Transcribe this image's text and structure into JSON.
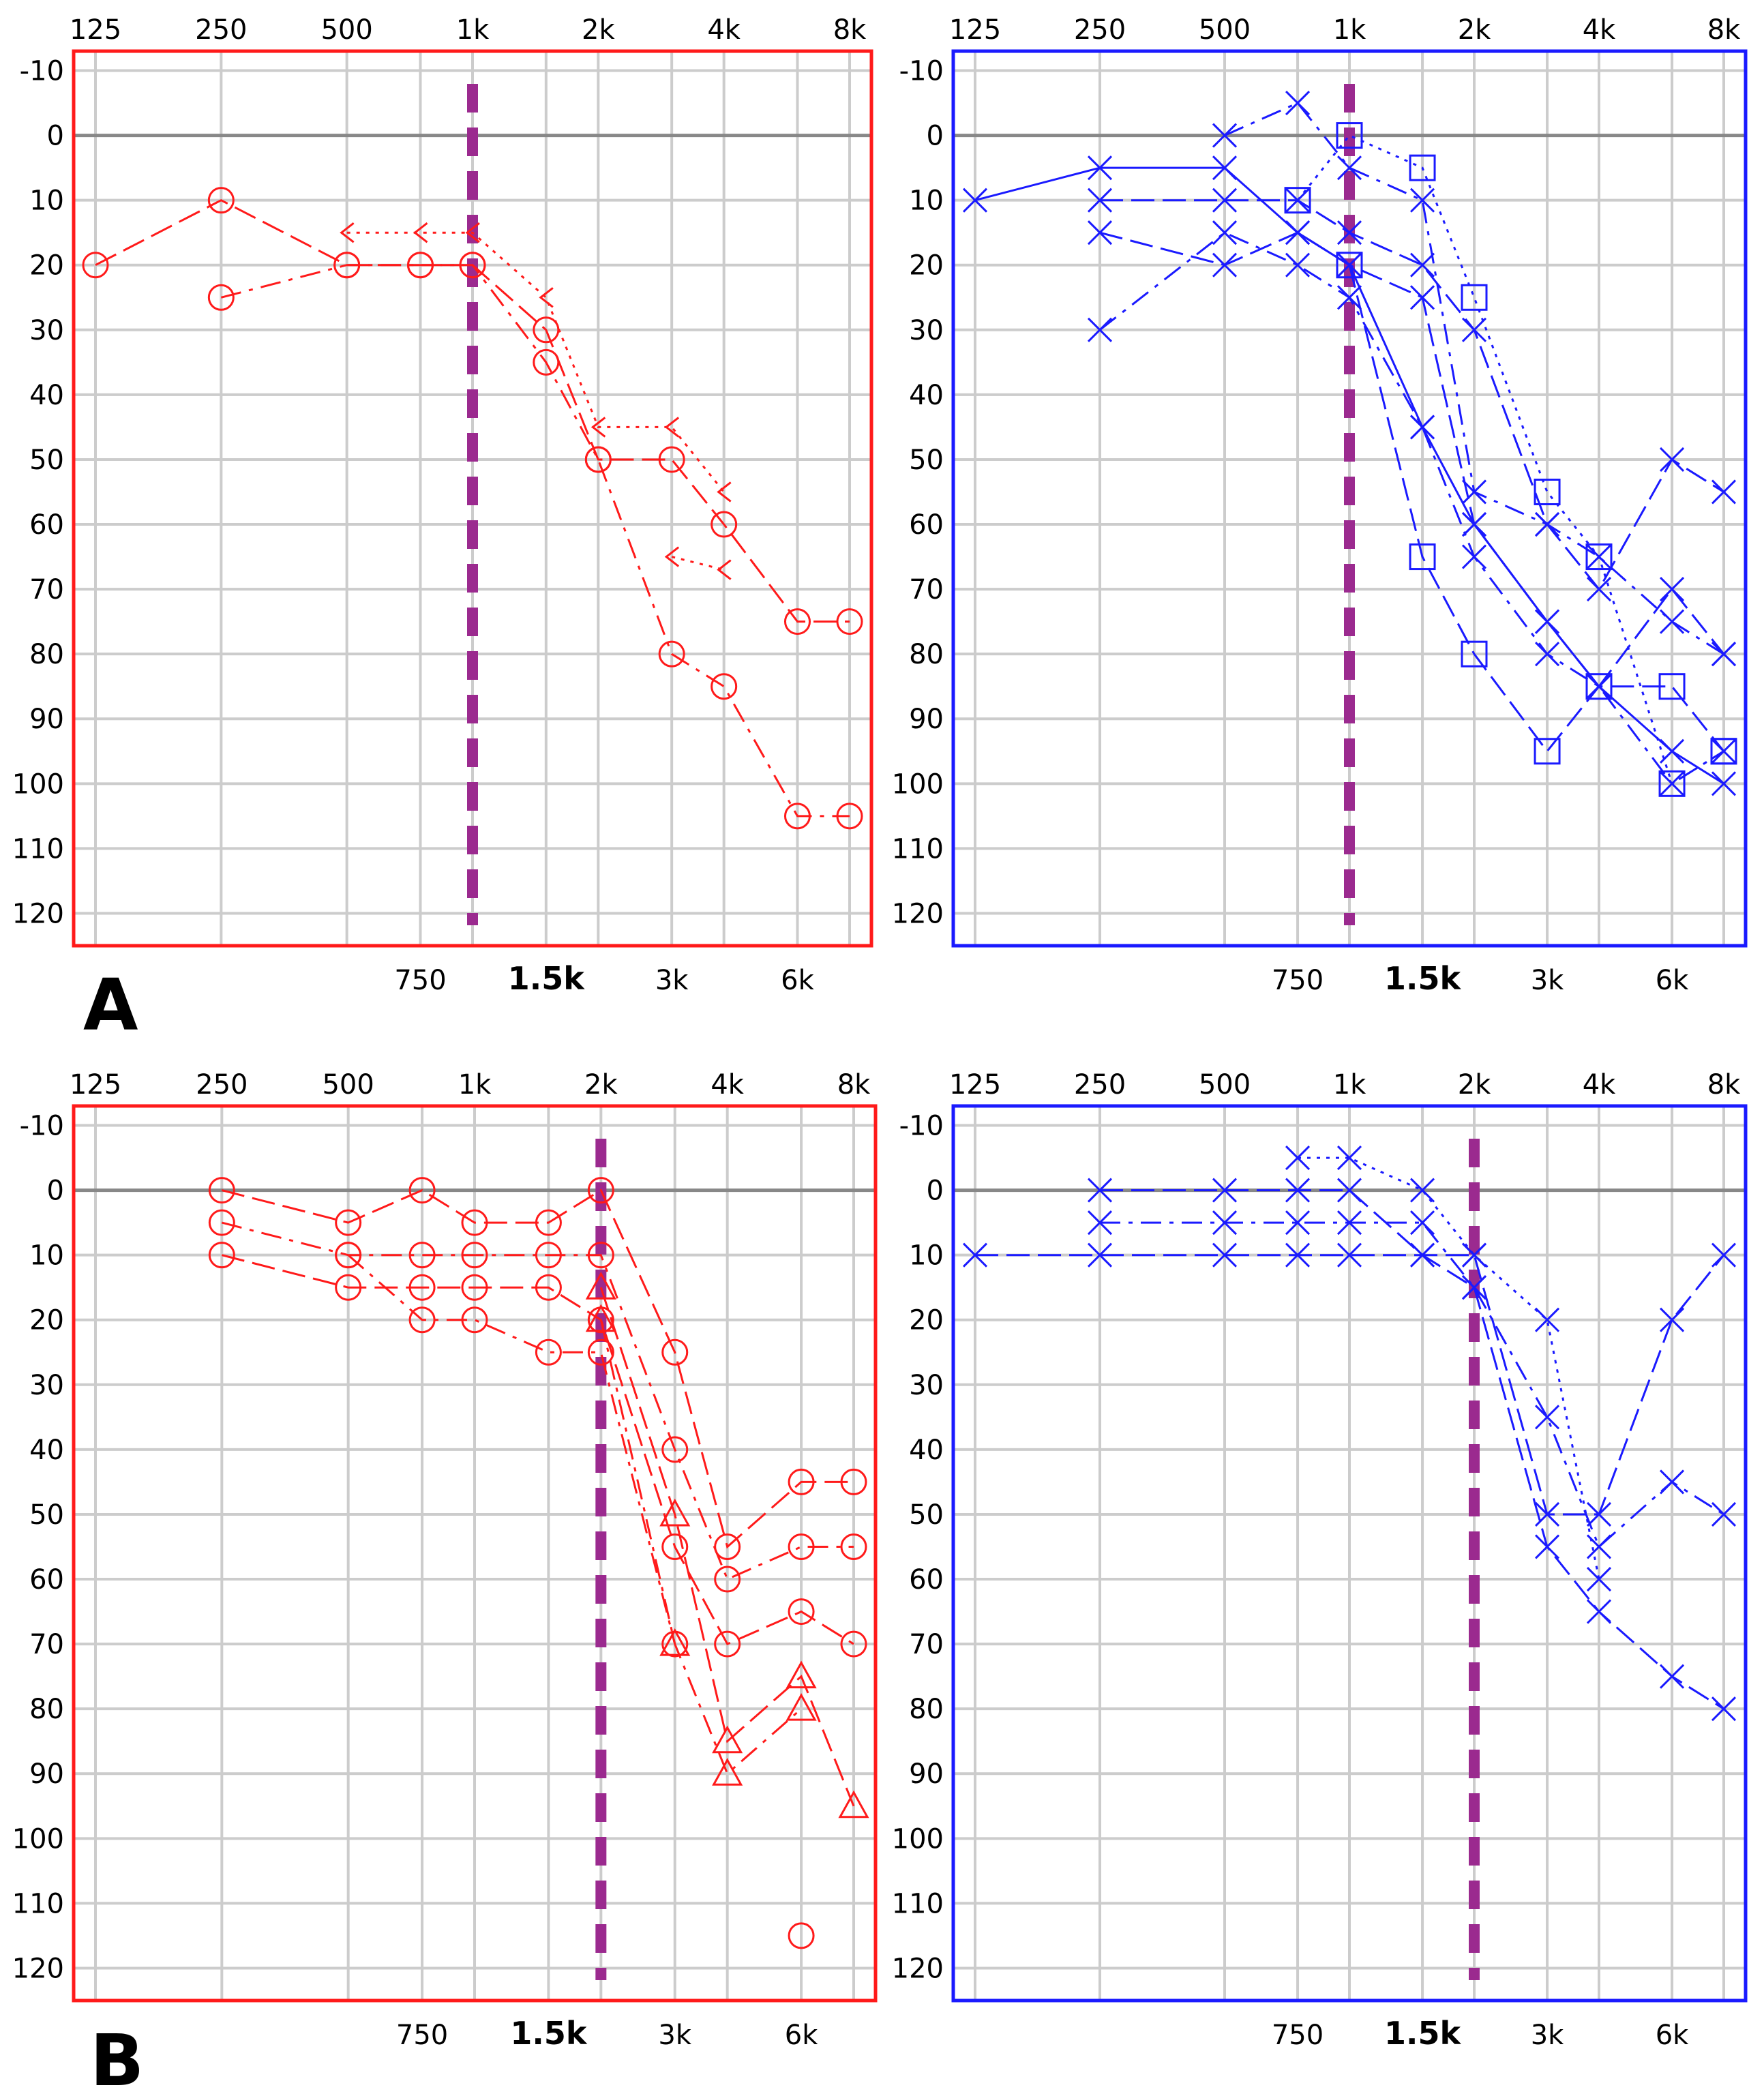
{
  "figure": {
    "panel_labels": [
      "A",
      "B"
    ]
  },
  "axis": {
    "x_top_ticks": [
      "125",
      "250",
      "500",
      "1k",
      "2k",
      "4k",
      "8k"
    ],
    "x_top_values": [
      125,
      250,
      500,
      1000,
      2000,
      4000,
      8000
    ],
    "x_bottom_ticks": [
      {
        "label": "750",
        "value": 750,
        "bold": false
      },
      {
        "label": "1.5k",
        "value": 1500,
        "bold": true
      },
      {
        "label": "3k",
        "value": 3000,
        "bold": false
      },
      {
        "label": "6k",
        "value": 6000,
        "bold": false
      }
    ],
    "y_ticks": [
      "-10",
      "0",
      "10",
      "20",
      "30",
      "40",
      "50",
      "60",
      "70",
      "80",
      "90",
      "100",
      "110",
      "120"
    ],
    "y_values": [
      -10,
      0,
      10,
      20,
      30,
      40,
      50,
      60,
      70,
      80,
      90,
      100,
      110,
      120
    ],
    "ylim": [
      -13,
      125
    ],
    "x_scale": "log2",
    "x_range_hz": [
      125,
      8000
    ],
    "y_inverted": true
  },
  "colors": {
    "right_ear": "#ff1a1a",
    "left_ear": "#1a1aff",
    "cutoff": "#9b2a8f",
    "grid": "#cccccc",
    "zero_line": "#888888"
  },
  "chart_data": [
    {
      "panel": "A",
      "side": "right",
      "type": "line",
      "grid": true,
      "cutoff_hz": 1000,
      "frame_color": "#ff1a1a",
      "series": [
        {
          "marker": "o",
          "dash": "long",
          "points": [
            [
              125,
              20
            ],
            [
              250,
              10
            ],
            [
              500,
              20
            ],
            [
              750,
              20
            ],
            [
              1000,
              20
            ],
            [
              1500,
              30
            ],
            [
              2000,
              50
            ],
            [
              3000,
              50
            ],
            [
              4000,
              60
            ],
            [
              6000,
              75
            ],
            [
              8000,
              75
            ]
          ]
        },
        {
          "marker": "o",
          "dash": "dashdot",
          "points": [
            [
              250,
              25
            ],
            [
              500,
              20
            ],
            [
              750,
              20
            ],
            [
              1000,
              20
            ],
            [
              1500,
              35
            ],
            [
              2000,
              50
            ],
            [
              3000,
              80
            ],
            [
              4000,
              85
            ],
            [
              6000,
              105
            ],
            [
              8000,
              105
            ]
          ]
        },
        {
          "marker": "<",
          "dash": "dotted",
          "points": [
            [
              500,
              15
            ],
            [
              750,
              15
            ],
            [
              1000,
              15
            ],
            [
              1500,
              25
            ],
            [
              2000,
              45
            ],
            [
              3000,
              45
            ],
            [
              4000,
              55
            ]
          ]
        },
        {
          "marker": "<",
          "dash": "dotted",
          "points": [
            [
              3000,
              65
            ],
            [
              4000,
              67
            ]
          ]
        }
      ]
    },
    {
      "panel": "A",
      "side": "left",
      "type": "line",
      "grid": true,
      "cutoff_hz": 1000,
      "frame_color": "#1a1aff",
      "series": [
        {
          "marker": "x",
          "dash": "solid",
          "points": [
            [
              125,
              10
            ],
            [
              250,
              5
            ],
            [
              500,
              5
            ],
            [
              750,
              15
            ],
            [
              1000,
              20
            ],
            [
              1500,
              45
            ],
            [
              2000,
              60
            ],
            [
              3000,
              75
            ],
            [
              4000,
              85
            ],
            [
              6000,
              95
            ],
            [
              8000,
              100
            ]
          ]
        },
        {
          "marker": "x",
          "dash": "dashdot",
          "points": [
            [
              250,
              30
            ],
            [
              500,
              15
            ],
            [
              750,
              20
            ],
            [
              1000,
              25
            ],
            [
              1500,
              45
            ],
            [
              2000,
              65
            ],
            [
              3000,
              80
            ],
            [
              4000,
              85
            ],
            [
              6000,
              100
            ],
            [
              8000,
              95
            ]
          ]
        },
        {
          "marker": "x",
          "dash": "long",
          "points": [
            [
              250,
              10
            ],
            [
              500,
              10
            ],
            [
              750,
              10
            ],
            [
              1000,
              15
            ],
            [
              1500,
              20
            ],
            [
              2000,
              30
            ],
            [
              3000,
              60
            ],
            [
              4000,
              70
            ],
            [
              6000,
              50
            ],
            [
              8000,
              55
            ]
          ]
        },
        {
          "marker": "x",
          "dash": "long",
          "points": [
            [
              250,
              15
            ],
            [
              500,
              20
            ],
            [
              750,
              15
            ],
            [
              1000,
              20
            ],
            [
              1500,
              25
            ],
            [
              2000,
              60
            ],
            [
              3000,
              75
            ],
            [
              4000,
              85
            ],
            [
              6000,
              70
            ],
            [
              8000,
              80
            ]
          ]
        },
        {
          "marker": "x",
          "dash": "dashdot",
          "points": [
            [
              500,
              0
            ],
            [
              750,
              -5
            ],
            [
              1000,
              5
            ],
            [
              1500,
              10
            ],
            [
              2000,
              55
            ],
            [
              3000,
              60
            ],
            [
              4000,
              65
            ],
            [
              6000,
              75
            ],
            [
              8000,
              80
            ]
          ]
        },
        {
          "marker": "sq",
          "dash": "long",
          "points": [
            [
              1000,
              20
            ],
            [
              1500,
              65
            ],
            [
              2000,
              80
            ],
            [
              3000,
              95
            ],
            [
              4000,
              85
            ],
            [
              6000,
              85
            ],
            [
              8000,
              95
            ]
          ]
        },
        {
          "marker": "sq",
          "dash": "dotted",
          "points": [
            [
              750,
              10
            ],
            [
              1000,
              0
            ],
            [
              1500,
              5
            ],
            [
              2000,
              25
            ],
            [
              3000,
              55
            ],
            [
              4000,
              65
            ],
            [
              6000,
              100
            ],
            [
              8000,
              95
            ]
          ]
        }
      ]
    },
    {
      "panel": "B",
      "side": "right",
      "type": "line",
      "grid": true,
      "cutoff_hz": 2000,
      "frame_color": "#ff1a1a",
      "series": [
        {
          "marker": "o",
          "dash": "long",
          "points": [
            [
              250,
              0
            ],
            [
              500,
              5
            ],
            [
              750,
              0
            ],
            [
              1000,
              5
            ],
            [
              1500,
              5
            ],
            [
              2000,
              0
            ],
            [
              3000,
              25
            ],
            [
              4000,
              55
            ],
            [
              6000,
              45
            ],
            [
              8000,
              45
            ]
          ]
        },
        {
          "marker": "o",
          "dash": "dashdot",
          "points": [
            [
              250,
              5
            ],
            [
              500,
              10
            ],
            [
              750,
              10
            ],
            [
              1000,
              10
            ],
            [
              1500,
              10
            ],
            [
              2000,
              10
            ],
            [
              3000,
              40
            ],
            [
              4000,
              60
            ],
            [
              6000,
              55
            ],
            [
              8000,
              55
            ]
          ]
        },
        {
          "marker": "o",
          "dash": "long",
          "points": [
            [
              250,
              10
            ],
            [
              500,
              15
            ],
            [
              750,
              15
            ],
            [
              1000,
              15
            ],
            [
              1500,
              15
            ],
            [
              2000,
              20
            ],
            [
              3000,
              55
            ],
            [
              4000,
              70
            ],
            [
              6000,
              65
            ],
            [
              8000,
              70
            ]
          ]
        },
        {
          "marker": "o",
          "dash": "dashdot",
          "points": [
            [
              500,
              10
            ],
            [
              750,
              20
            ],
            [
              1000,
              20
            ],
            [
              1500,
              25
            ],
            [
              2000,
              25
            ],
            [
              3000,
              70
            ]
          ]
        },
        {
          "marker": "tri",
          "dash": "long",
          "points": [
            [
              2000,
              15
            ],
            [
              3000,
              50
            ],
            [
              4000,
              85
            ],
            [
              6000,
              75
            ],
            [
              8000,
              95
            ]
          ]
        },
        {
          "marker": "tri",
          "dash": "dashdot",
          "points": [
            [
              2000,
              20
            ],
            [
              3000,
              70
            ],
            [
              4000,
              90
            ],
            [
              6000,
              80
            ]
          ]
        },
        {
          "marker": "o",
          "dash": "none",
          "points": [
            [
              6000,
              115
            ]
          ]
        }
      ]
    },
    {
      "panel": "B",
      "side": "left",
      "type": "line",
      "grid": true,
      "cutoff_hz": 2000,
      "frame_color": "#1a1aff",
      "series": [
        {
          "marker": "x",
          "dash": "long",
          "points": [
            [
              125,
              10
            ],
            [
              250,
              10
            ],
            [
              500,
              10
            ],
            [
              750,
              10
            ],
            [
              1000,
              10
            ],
            [
              1500,
              10
            ],
            [
              2000,
              10
            ],
            [
              3000,
              50
            ],
            [
              4000,
              50
            ],
            [
              6000,
              20
            ],
            [
              8000,
              10
            ]
          ]
        },
        {
          "marker": "x",
          "dash": "dashdot",
          "points": [
            [
              250,
              5
            ],
            [
              500,
              5
            ],
            [
              750,
              5
            ],
            [
              1000,
              5
            ],
            [
              1500,
              5
            ],
            [
              2000,
              15
            ],
            [
              3000,
              35
            ],
            [
              4000,
              55
            ],
            [
              6000,
              45
            ],
            [
              8000,
              50
            ]
          ]
        },
        {
          "marker": "x",
          "dash": "long",
          "points": [
            [
              250,
              0
            ],
            [
              500,
              0
            ],
            [
              750,
              0
            ],
            [
              1000,
              0
            ],
            [
              1500,
              10
            ],
            [
              2000,
              15
            ],
            [
              3000,
              55
            ],
            [
              4000,
              65
            ],
            [
              6000,
              75
            ],
            [
              8000,
              80
            ]
          ]
        },
        {
          "marker": "x",
          "dash": "dotted",
          "points": [
            [
              750,
              -5
            ],
            [
              1000,
              -5
            ],
            [
              1500,
              0
            ],
            [
              2000,
              10
            ],
            [
              3000,
              20
            ],
            [
              4000,
              60
            ]
          ]
        }
      ]
    }
  ]
}
